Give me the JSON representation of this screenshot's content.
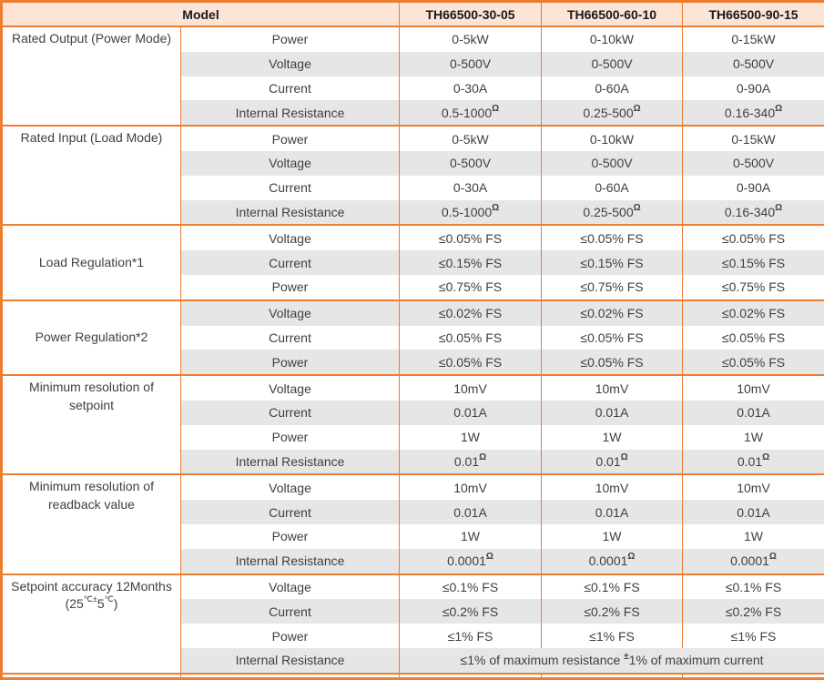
{
  "colors": {
    "border_orange": "#ED7D31",
    "header_bg": "#FCE4D6",
    "stripe_gray": "#E7E6E6"
  },
  "table": {
    "header": {
      "model_label": "Model",
      "columns": [
        "TH66500-30-05",
        "TH66500-60-10",
        "TH66500-90-15"
      ]
    },
    "groups": [
      {
        "valign": "top",
        "label_lines": [
          [
            {
              "t": "Rated Output (Power Mode)"
            }
          ]
        ],
        "rows": [
          {
            "param": "Power",
            "cells": [
              [
                {
                  "t": "0-5kW"
                }
              ],
              [
                {
                  "t": "0-10kW"
                }
              ],
              [
                {
                  "t": "0-15kW"
                }
              ]
            ]
          },
          {
            "param": "Voltage",
            "cells": [
              [
                {
                  "t": "0-500V"
                }
              ],
              [
                {
                  "t": "0-500V"
                }
              ],
              [
                {
                  "t": "0-500V"
                }
              ]
            ]
          },
          {
            "param": "Current",
            "cells": [
              [
                {
                  "t": "0-30A"
                }
              ],
              [
                {
                  "t": "0-60A"
                }
              ],
              [
                {
                  "t": "0-90A"
                }
              ]
            ]
          },
          {
            "param": "Internal Resistance",
            "cells": [
              [
                {
                  "t": "0.5-1000"
                },
                {
                  "sup": "Ω"
                }
              ],
              [
                {
                  "t": "0.25-500"
                },
                {
                  "sup": "Ω"
                }
              ],
              [
                {
                  "t": "0.16-340"
                },
                {
                  "sup": "Ω"
                }
              ]
            ]
          }
        ]
      },
      {
        "valign": "top",
        "label_lines": [
          [
            {
              "t": "Rated Input (Load Mode)"
            }
          ]
        ],
        "rows": [
          {
            "param": "Power",
            "cells": [
              [
                {
                  "t": "0-5kW"
                }
              ],
              [
                {
                  "t": "0-10kW"
                }
              ],
              [
                {
                  "t": "0-15kW"
                }
              ]
            ]
          },
          {
            "param": "Voltage",
            "cells": [
              [
                {
                  "t": "0-500V"
                }
              ],
              [
                {
                  "t": "0-500V"
                }
              ],
              [
                {
                  "t": "0-500V"
                }
              ]
            ]
          },
          {
            "param": "Current",
            "cells": [
              [
                {
                  "t": "0-30A"
                }
              ],
              [
                {
                  "t": "0-60A"
                }
              ],
              [
                {
                  "t": "0-90A"
                }
              ]
            ]
          },
          {
            "param": "Internal Resistance",
            "cells": [
              [
                {
                  "t": "0.5-1000"
                },
                {
                  "sup": "Ω"
                }
              ],
              [
                {
                  "t": "0.25-500"
                },
                {
                  "sup": "Ω"
                }
              ],
              [
                {
                  "t": "0.16-340"
                },
                {
                  "sup": "Ω"
                }
              ]
            ]
          }
        ]
      },
      {
        "valign": "middle",
        "label_lines": [
          [
            {
              "t": "Load Regulation*1"
            }
          ]
        ],
        "rows": [
          {
            "param": "Voltage",
            "cells": [
              [
                {
                  "t": "≤0.05% FS"
                }
              ],
              [
                {
                  "t": "≤0.05% FS"
                }
              ],
              [
                {
                  "t": "≤0.05% FS"
                }
              ]
            ]
          },
          {
            "param": "Current",
            "cells": [
              [
                {
                  "t": "≤0.15% FS"
                }
              ],
              [
                {
                  "t": "≤0.15% FS"
                }
              ],
              [
                {
                  "t": "≤0.15% FS"
                }
              ]
            ]
          },
          {
            "param": "Power",
            "cells": [
              [
                {
                  "t": "≤0.75% FS"
                }
              ],
              [
                {
                  "t": "≤0.75% FS"
                }
              ],
              [
                {
                  "t": "≤0.75% FS"
                }
              ]
            ]
          }
        ]
      },
      {
        "valign": "middle",
        "label_lines": [
          [
            {
              "t": "Power Regulation*2"
            }
          ]
        ],
        "rows": [
          {
            "param": "Voltage",
            "cells": [
              [
                {
                  "t": "≤0.02% FS"
                }
              ],
              [
                {
                  "t": "≤0.02% FS"
                }
              ],
              [
                {
                  "t": "≤0.02% FS"
                }
              ]
            ]
          },
          {
            "param": "Current",
            "cells": [
              [
                {
                  "t": "≤0.05% FS"
                }
              ],
              [
                {
                  "t": "≤0.05% FS"
                }
              ],
              [
                {
                  "t": "≤0.05% FS"
                }
              ]
            ]
          },
          {
            "param": "Power",
            "cells": [
              [
                {
                  "t": "≤0.05% FS"
                }
              ],
              [
                {
                  "t": "≤0.05% FS"
                }
              ],
              [
                {
                  "t": "≤0.05% FS"
                }
              ]
            ]
          }
        ]
      },
      {
        "valign": "top",
        "label_lines": [
          [
            {
              "t": "Minimum resolution of"
            }
          ],
          [
            {
              "t": "setpoint"
            }
          ]
        ],
        "rows": [
          {
            "param": "Voltage",
            "cells": [
              [
                {
                  "t": "10mV"
                }
              ],
              [
                {
                  "t": "10mV"
                }
              ],
              [
                {
                  "t": "10mV"
                }
              ]
            ]
          },
          {
            "param": "Current",
            "cells": [
              [
                {
                  "t": "0.01A"
                }
              ],
              [
                {
                  "t": "0.01A"
                }
              ],
              [
                {
                  "t": "0.01A"
                }
              ]
            ]
          },
          {
            "param": "Power",
            "cells": [
              [
                {
                  "t": "1W"
                }
              ],
              [
                {
                  "t": "1W"
                }
              ],
              [
                {
                  "t": "1W"
                }
              ]
            ]
          },
          {
            "param": "Internal Resistance",
            "cells": [
              [
                {
                  "t": "0.01"
                },
                {
                  "sup": "Ω"
                }
              ],
              [
                {
                  "t": "0.01"
                },
                {
                  "sup": "Ω"
                }
              ],
              [
                {
                  "t": "0.01"
                },
                {
                  "sup": "Ω"
                }
              ]
            ]
          }
        ]
      },
      {
        "valign": "top",
        "label_lines": [
          [
            {
              "t": "Minimum resolution of"
            }
          ],
          [
            {
              "t": "readback value"
            }
          ]
        ],
        "rows": [
          {
            "param": "Voltage",
            "cells": [
              [
                {
                  "t": "10mV"
                }
              ],
              [
                {
                  "t": "10mV"
                }
              ],
              [
                {
                  "t": "10mV"
                }
              ]
            ]
          },
          {
            "param": "Current",
            "cells": [
              [
                {
                  "t": "0.01A"
                }
              ],
              [
                {
                  "t": "0.01A"
                }
              ],
              [
                {
                  "t": "0.01A"
                }
              ]
            ]
          },
          {
            "param": "Power",
            "cells": [
              [
                {
                  "t": "1W"
                }
              ],
              [
                {
                  "t": "1W"
                }
              ],
              [
                {
                  "t": "1W"
                }
              ]
            ]
          },
          {
            "param": "Internal Resistance",
            "cells": [
              [
                {
                  "t": "0.0001"
                },
                {
                  "sup": "Ω"
                }
              ],
              [
                {
                  "t": "0.0001"
                },
                {
                  "sup": "Ω"
                }
              ],
              [
                {
                  "t": "0.0001"
                },
                {
                  "sup": "Ω"
                }
              ]
            ]
          }
        ]
      },
      {
        "valign": "top",
        "label_lines": [
          [
            {
              "t": "Setpoint accuracy 12Months"
            }
          ],
          [
            {
              "t": "(25"
            },
            {
              "sup": "℃±"
            },
            {
              "t": "5"
            },
            {
              "sup": "℃"
            },
            {
              "t": ")"
            }
          ]
        ],
        "rows": [
          {
            "param": "Voltage",
            "cells": [
              [
                {
                  "t": "≤0.1% FS"
                }
              ],
              [
                {
                  "t": "≤0.1% FS"
                }
              ],
              [
                {
                  "t": "≤0.1% FS"
                }
              ]
            ]
          },
          {
            "param": "Current",
            "cells": [
              [
                {
                  "t": "≤0.2% FS"
                }
              ],
              [
                {
                  "t": "≤0.2% FS"
                }
              ],
              [
                {
                  "t": "≤0.2% FS"
                }
              ]
            ]
          },
          {
            "param": "Power",
            "cells": [
              [
                {
                  "t": "≤1% FS"
                }
              ],
              [
                {
                  "t": "≤1% FS"
                }
              ],
              [
                {
                  "t": "≤1% FS"
                }
              ]
            ]
          },
          {
            "param": "Internal Resistance",
            "merged": true,
            "cells": [
              [
                {
                  "t": "≤1% of maximum resistance "
                },
                {
                  "sup": "±"
                },
                {
                  "t": "1% of maximum current"
                }
              ]
            ]
          }
        ]
      }
    ]
  }
}
